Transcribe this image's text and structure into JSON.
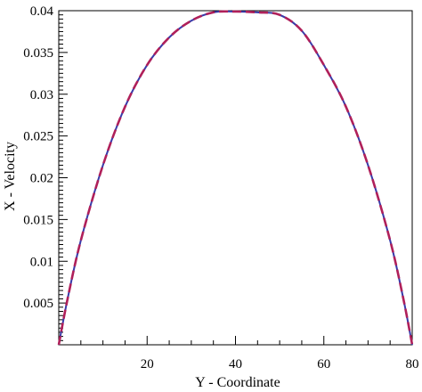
{
  "chart_data": {
    "type": "line",
    "title": "",
    "xlabel": "Y - Coordinate",
    "ylabel": "X - Velocity",
    "xlim": [
      0,
      80
    ],
    "ylim": [
      0,
      0.04
    ],
    "xticks": [
      20,
      40,
      60,
      80
    ],
    "xtick_labels": [
      "20",
      "40",
      "60",
      "80"
    ],
    "yticks": [
      0.005,
      0.01,
      0.015,
      0.02,
      0.025,
      0.03,
      0.035,
      0.04
    ],
    "ytick_labels": [
      "0.005",
      "0.01",
      "0.015",
      "0.02",
      "0.025",
      "0.03",
      "0.035",
      "0.04"
    ],
    "grid": false,
    "legend": "none",
    "series": [
      {
        "style": "solid",
        "color": "#3a3aa8",
        "x": [
          0,
          2,
          5,
          10,
          15,
          20,
          25,
          30,
          35,
          40,
          45,
          50,
          55,
          60,
          65,
          70,
          75,
          78,
          80
        ],
        "y": [
          0,
          0.0055,
          0.0125,
          0.0215,
          0.0285,
          0.0335,
          0.0368,
          0.0388,
          0.0398,
          0.0399,
          0.0398,
          0.0395,
          0.0376,
          0.0335,
          0.0285,
          0.0215,
          0.0125,
          0.0055,
          0
        ]
      },
      {
        "style": "dashed",
        "color": "#b0205a",
        "x": [
          0,
          2,
          5,
          10,
          15,
          20,
          25,
          30,
          35,
          40,
          45,
          50,
          55,
          60,
          65,
          70,
          75,
          78,
          80
        ],
        "y": [
          0,
          0.0055,
          0.0125,
          0.0215,
          0.0285,
          0.0335,
          0.0368,
          0.0388,
          0.0398,
          0.0399,
          0.0398,
          0.0395,
          0.0376,
          0.0335,
          0.0285,
          0.0215,
          0.0125,
          0.0055,
          0
        ]
      }
    ]
  }
}
